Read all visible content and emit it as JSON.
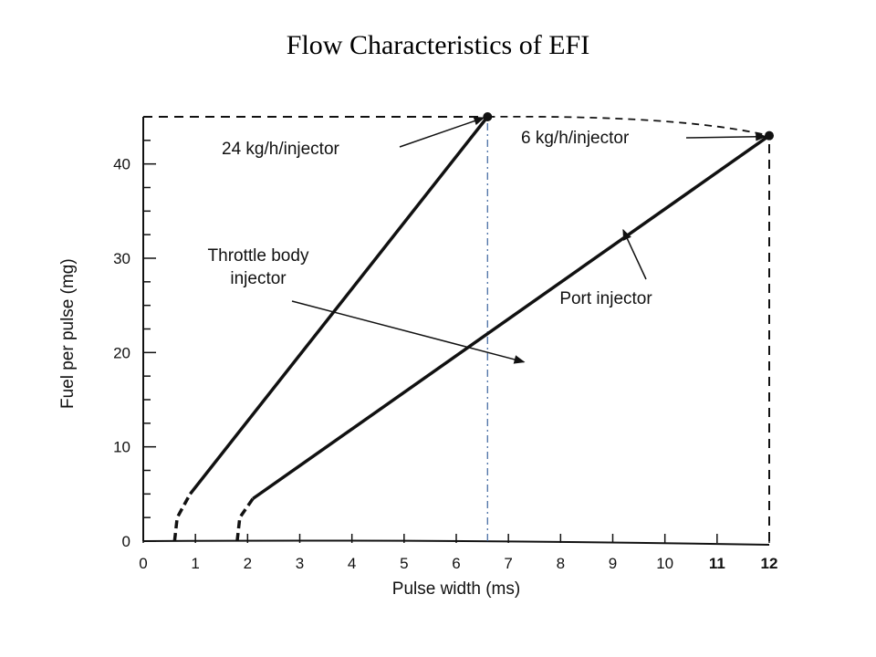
{
  "slide": {
    "title": "Flow Characteristics of EFI"
  },
  "chart_data": {
    "type": "line",
    "xlabel": "Pulse width (ms)",
    "ylabel": "Fuel per pulse (mg)",
    "xlim": [
      0,
      12
    ],
    "ylim": [
      0,
      45
    ],
    "x_ticks": [
      0,
      1,
      2,
      3,
      4,
      5,
      6,
      7,
      8,
      9,
      10,
      11,
      12
    ],
    "y_ticks": [
      0,
      10,
      20,
      30,
      40
    ],
    "grid": false,
    "series": [
      {
        "name": "Throttle body injector",
        "points": [
          [
            0.6,
            0
          ],
          [
            0.65,
            2.5
          ],
          [
            0.9,
            5
          ],
          [
            6.6,
            45
          ]
        ],
        "dashed_until_x": 0.9
      },
      {
        "name": "Port injector",
        "points": [
          [
            1.8,
            0
          ],
          [
            1.85,
            2.5
          ],
          [
            2.1,
            4.5
          ],
          [
            12,
            43
          ]
        ],
        "dashed_until_x": 2.1
      }
    ],
    "reference_lines": [
      {
        "kind": "vertical",
        "x": 6.6,
        "from_y": 0,
        "to_y": 45,
        "style": "dash-dot"
      },
      {
        "kind": "vertical",
        "x": 12,
        "from_y": 0,
        "to_y": 43,
        "style": "dashed"
      },
      {
        "kind": "horizontal",
        "y": 45,
        "from_x": 0,
        "to_x": 6.6,
        "style": "dashed"
      }
    ],
    "endpoints": [
      {
        "x": 6.6,
        "y": 45,
        "label": "24 kg/h/injector"
      },
      {
        "x": 12,
        "y": 43,
        "label": "6 kg/h/injector"
      }
    ],
    "annotations": [
      {
        "text_lines": [
          "Throttle body",
          "injector"
        ],
        "points_to": [
          7.3,
          19
        ]
      },
      {
        "text_lines": [
          "Port injector"
        ],
        "points_to": [
          9.2,
          33
        ]
      }
    ]
  }
}
